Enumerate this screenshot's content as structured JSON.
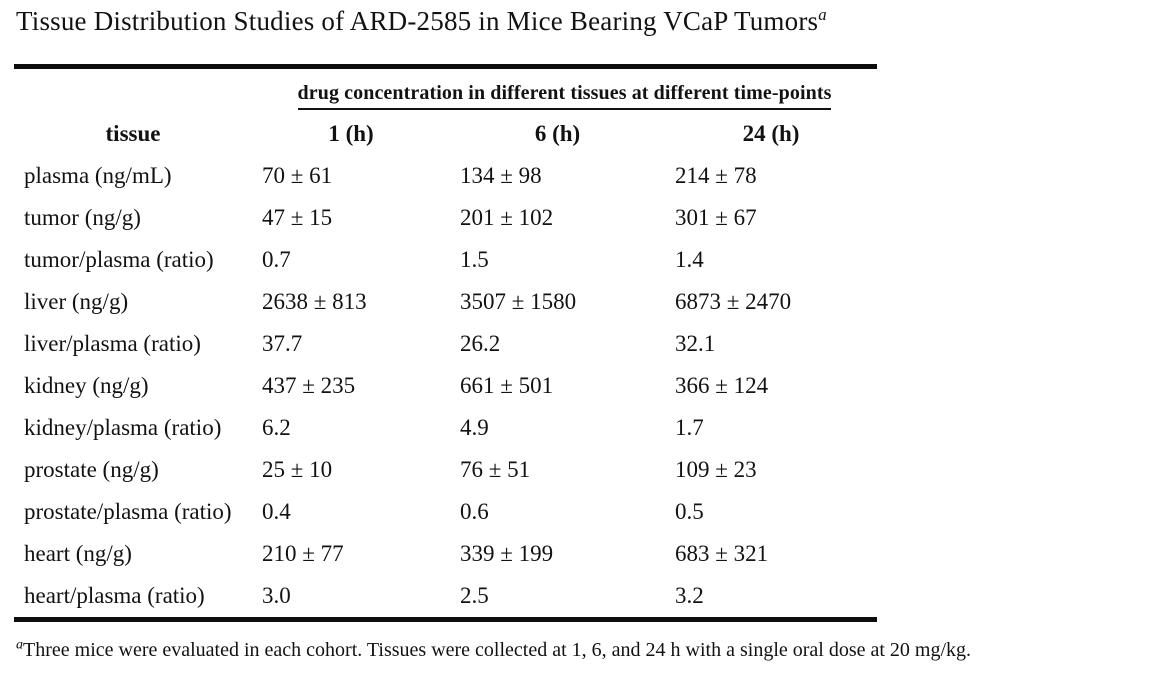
{
  "page": {
    "background": "#ffffff",
    "text_color": "#121212"
  },
  "title": {
    "text": "Tissue Distribution Studies of ARD-2585 in Mice Bearing VCaP Tumors",
    "footnote_marker": "a"
  },
  "chart_data": {
    "type": "table",
    "title": "Tissue Distribution Studies of ARD-2585 in Mice Bearing VCaP Tumors",
    "span_header": "drug concentration in different tissues at different time-points",
    "columns": [
      "tissue",
      "1 (h)",
      "6 (h)",
      "24 (h)"
    ],
    "rows": [
      {
        "tissue": "plasma (ng/mL)",
        "values": [
          "70 ± 61",
          "134 ± 98",
          "214 ± 78"
        ]
      },
      {
        "tissue": "tumor (ng/g)",
        "values": [
          "47 ± 15",
          "201 ± 102",
          "301 ± 67"
        ]
      },
      {
        "tissue": "tumor/plasma (ratio)",
        "values": [
          "0.7",
          "1.5",
          "1.4"
        ]
      },
      {
        "tissue": "liver (ng/g)",
        "values": [
          "2638 ± 813",
          "3507 ± 1580",
          "6873 ± 2470"
        ]
      },
      {
        "tissue": "liver/plasma (ratio)",
        "values": [
          "37.7",
          "26.2",
          "32.1"
        ]
      },
      {
        "tissue": "kidney (ng/g)",
        "values": [
          "437 ± 235",
          "661 ± 501",
          "366 ± 124"
        ]
      },
      {
        "tissue": "kidney/plasma (ratio)",
        "values": [
          "6.2",
          "4.9",
          "1.7"
        ]
      },
      {
        "tissue": "prostate (ng/g)",
        "values": [
          "25 ± 10",
          "76 ± 51",
          "109 ± 23"
        ]
      },
      {
        "tissue": "prostate/plasma (ratio)",
        "values": [
          "0.4",
          "0.6",
          "0.5"
        ]
      },
      {
        "tissue": "heart (ng/g)",
        "values": [
          "210 ± 77",
          "339 ± 199",
          "683 ± 321"
        ]
      },
      {
        "tissue": "heart/plasma (ratio)",
        "values": [
          "3.0",
          "2.5",
          "3.2"
        ]
      }
    ]
  },
  "footnote": {
    "marker": "a",
    "text": "Three mice were evaluated in each cohort. Tissues were collected at 1, 6, and 24 h with a single oral dose at 20 mg/kg."
  }
}
